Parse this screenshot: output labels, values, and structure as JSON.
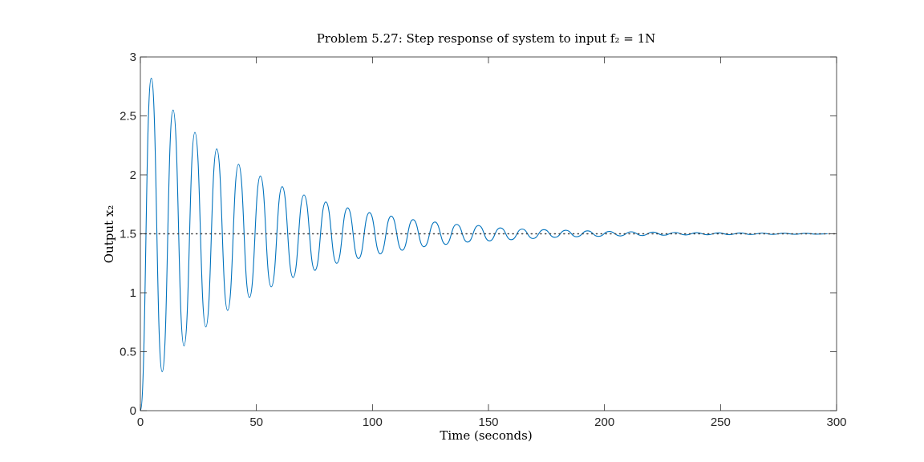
{
  "chart_data": {
    "type": "line",
    "title": "Problem 5.27: Step response of system to input f₂ = 1N",
    "xlabel": "Time (seconds)",
    "ylabel": "Output x₂",
    "xlim": [
      0,
      300
    ],
    "ylim": [
      0,
      3
    ],
    "xticks": [
      0,
      50,
      100,
      150,
      200,
      250,
      300
    ],
    "xtick_labels": [
      "0",
      "50",
      "100",
      "150",
      "200",
      "250",
      "300"
    ],
    "yticks": [
      0,
      0.5,
      1,
      1.5,
      2,
      2.5,
      3
    ],
    "ytick_labels": [
      "0",
      "0.5",
      "1",
      "1.5",
      "2",
      "2.5",
      "3"
    ],
    "grid": false,
    "box": true,
    "series": [
      {
        "role": "step response",
        "color": "#0072BD",
        "style": "solid",
        "x": [
          0,
          4.7,
          9.4,
          14.1,
          18.8,
          23.5,
          28.2,
          32.9,
          37.6,
          42.3,
          47.0,
          51.7,
          56.4,
          61.1,
          65.8,
          70.5,
          75.2,
          79.9,
          84.6,
          89.3,
          94.0,
          98.7,
          103.4,
          108.1,
          112.8,
          117.5,
          122.2,
          126.9,
          131.6,
          136.3,
          141.0,
          145.7,
          150.4,
          155.1,
          159.8,
          164.5,
          169.2,
          173.9,
          178.6,
          183.3,
          188.0,
          192.7,
          197.4,
          202.1,
          206.8,
          211.5,
          216.2,
          220.9,
          225.6,
          230.3,
          235.0,
          239.7,
          244.4,
          249.1,
          253.8,
          258.5,
          263.2,
          267.9,
          272.6,
          277.3,
          282.0,
          286.7,
          291.4,
          296.1
        ],
        "y": [
          0,
          2.82,
          0.33,
          2.55,
          0.55,
          2.36,
          0.71,
          2.22,
          0.85,
          2.09,
          0.96,
          1.99,
          1.05,
          1.9,
          1.13,
          1.83,
          1.19,
          1.77,
          1.25,
          1.72,
          1.29,
          1.68,
          1.33,
          1.65,
          1.36,
          1.62,
          1.39,
          1.6,
          1.41,
          1.58,
          1.43,
          1.57,
          1.44,
          1.55,
          1.45,
          1.54,
          1.46,
          1.535,
          1.47,
          1.53,
          1.475,
          1.525,
          1.478,
          1.52,
          1.482,
          1.517,
          1.485,
          1.514,
          1.488,
          1.512,
          1.49,
          1.51,
          1.492,
          1.508,
          1.493,
          1.507,
          1.494,
          1.506,
          1.495,
          1.505,
          1.496,
          1.504,
          1.497,
          1.5
        ]
      },
      {
        "role": "final value",
        "color": "#404040",
        "style": "dotted",
        "x": [
          0,
          300
        ],
        "y": [
          1.5,
          1.5
        ]
      }
    ]
  }
}
